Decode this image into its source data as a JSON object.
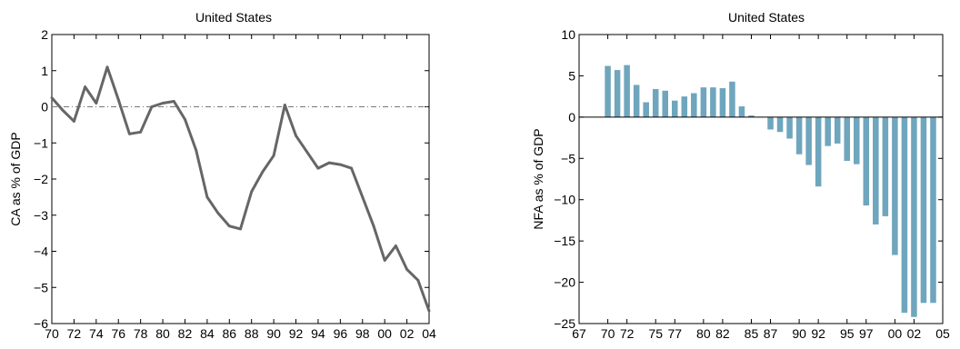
{
  "chart_data": [
    {
      "type": "line",
      "title": "United States",
      "xlabel": "",
      "ylabel": "CA as % of GDP",
      "xlim": [
        1970,
        2004
      ],
      "ylim": [
        -6,
        2
      ],
      "xticks": [
        1970,
        1972,
        1974,
        1976,
        1978,
        1980,
        1982,
        1984,
        1986,
        1988,
        1990,
        1992,
        1994,
        1996,
        1998,
        2000,
        2002,
        2004
      ],
      "xtick_labels": [
        "70",
        "72",
        "74",
        "76",
        "78",
        "80",
        "82",
        "84",
        "86",
        "88",
        "90",
        "92",
        "94",
        "96",
        "98",
        "00",
        "02",
        "04"
      ],
      "yticks": [
        -6,
        -5,
        -4,
        -3,
        -2,
        -1,
        0,
        1,
        2
      ],
      "ytick_labels": [
        "−6",
        "−5",
        "−4",
        "−3",
        "−2",
        "−1",
        "0",
        "1",
        "2"
      ],
      "reference_line": {
        "y": 0,
        "style": "dash-dot"
      },
      "line_color": "#666666",
      "series": [
        {
          "x": [
            1970,
            1971,
            1972,
            1973,
            1974,
            1975,
            1976,
            1977,
            1978,
            1979,
            1980,
            1981,
            1982,
            1983,
            1984,
            1985,
            1986,
            1987,
            1988,
            1989,
            1990,
            1991,
            1992,
            1993,
            1994,
            1995,
            1996,
            1997,
            1998,
            1999,
            2000,
            2001,
            2002,
            2003,
            2004
          ],
          "values": [
            0.25,
            -0.1,
            -0.4,
            0.55,
            0.1,
            1.1,
            0.2,
            -0.75,
            -0.7,
            0.0,
            0.1,
            0.15,
            -0.35,
            -1.2,
            -2.5,
            -2.95,
            -3.3,
            -3.38,
            -2.35,
            -1.8,
            -1.35,
            0.05,
            -0.8,
            -1.25,
            -1.7,
            -1.55,
            -1.6,
            -1.7,
            -2.5,
            -3.3,
            -4.25,
            -3.85,
            -4.5,
            -4.8,
            -5.65
          ]
        }
      ]
    },
    {
      "type": "bar",
      "title": "United States",
      "xlabel": "",
      "ylabel": "NFA as % of GDP",
      "xlim": [
        1967,
        2005
      ],
      "ylim": [
        -25,
        10
      ],
      "xticks": [
        1967,
        1970,
        1972,
        1975,
        1977,
        1980,
        1982,
        1985,
        1987,
        1990,
        1992,
        1995,
        1997,
        2000,
        2002,
        2005
      ],
      "xtick_labels": [
        "67",
        "70",
        "72",
        "75",
        "77",
        "80",
        "82",
        "85",
        "87",
        "90",
        "92",
        "95",
        "97",
        "00",
        "02",
        "05"
      ],
      "yticks": [
        -25,
        -20,
        -15,
        -10,
        -5,
        0,
        5,
        10
      ],
      "ytick_labels": [
        "−25",
        "−20",
        "−15",
        "−10",
        "−5",
        "0",
        "5",
        "10"
      ],
      "bar_color": "#6fa6bd",
      "x": [
        1970,
        1971,
        1972,
        1973,
        1974,
        1975,
        1976,
        1977,
        1978,
        1979,
        1980,
        1981,
        1982,
        1983,
        1984,
        1985,
        1986,
        1987,
        1988,
        1989,
        1990,
        1991,
        1992,
        1993,
        1994,
        1995,
        1996,
        1997,
        1998,
        1999,
        2000,
        2001,
        2002,
        2003,
        2004
      ],
      "values": [
        6.2,
        5.7,
        6.3,
        3.9,
        1.8,
        3.4,
        3.2,
        2.0,
        2.5,
        2.9,
        3.6,
        3.6,
        3.5,
        4.3,
        1.3,
        0.2,
        0.0,
        -1.5,
        -1.8,
        -2.6,
        -4.5,
        -5.8,
        -8.4,
        -3.5,
        -3.2,
        -5.3,
        -5.7,
        -10.7,
        -13.0,
        -12.0,
        -16.7,
        -23.7,
        -24.2,
        -22.5,
        -22.5
      ]
    }
  ]
}
